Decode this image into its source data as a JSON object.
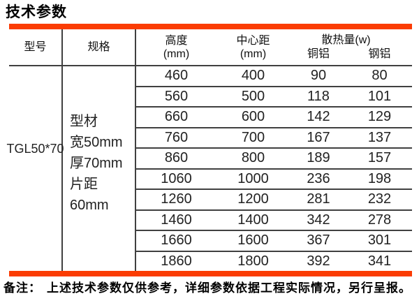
{
  "title": "技术参数",
  "colors": {
    "accent_bar": "#fb3c03",
    "line": "#404040"
  },
  "table": {
    "headers": {
      "model": "型号",
      "spec": "规格",
      "height_line1": "高度",
      "height_line2": "(mm)",
      "center_line1": "中心距",
      "center_line2": "(mm)",
      "heat": "散热量(w)",
      "copper_al": "铜铝",
      "steel_al": "钢铝"
    },
    "model": "TGL50*70",
    "spec_lines": [
      "型材",
      "宽50mm",
      "厚70mm",
      "片距",
      "60mm"
    ],
    "rows": [
      {
        "height": "460",
        "center": "400",
        "copper": "90",
        "steel": "80"
      },
      {
        "height": "560",
        "center": "500",
        "copper": "118",
        "steel": "101"
      },
      {
        "height": "660",
        "center": "600",
        "copper": "142",
        "steel": "129"
      },
      {
        "height": "760",
        "center": "700",
        "copper": "167",
        "steel": "137"
      },
      {
        "height": "860",
        "center": "800",
        "copper": "189",
        "steel": "157"
      },
      {
        "height": "1060",
        "center": "1000",
        "copper": "236",
        "steel": "198"
      },
      {
        "height": "1260",
        "center": "1200",
        "copper": "281",
        "steel": "232"
      },
      {
        "height": "1460",
        "center": "1400",
        "copper": "342",
        "steel": "278"
      },
      {
        "height": "1660",
        "center": "1600",
        "copper": "367",
        "steel": "301"
      },
      {
        "height": "1860",
        "center": "1800",
        "copper": "392",
        "steel": "341"
      }
    ]
  },
  "footer": {
    "label": "备注：",
    "note": "上述技术参数仅供参考，详细参数依据工程实际情况，另行呈报。"
  }
}
